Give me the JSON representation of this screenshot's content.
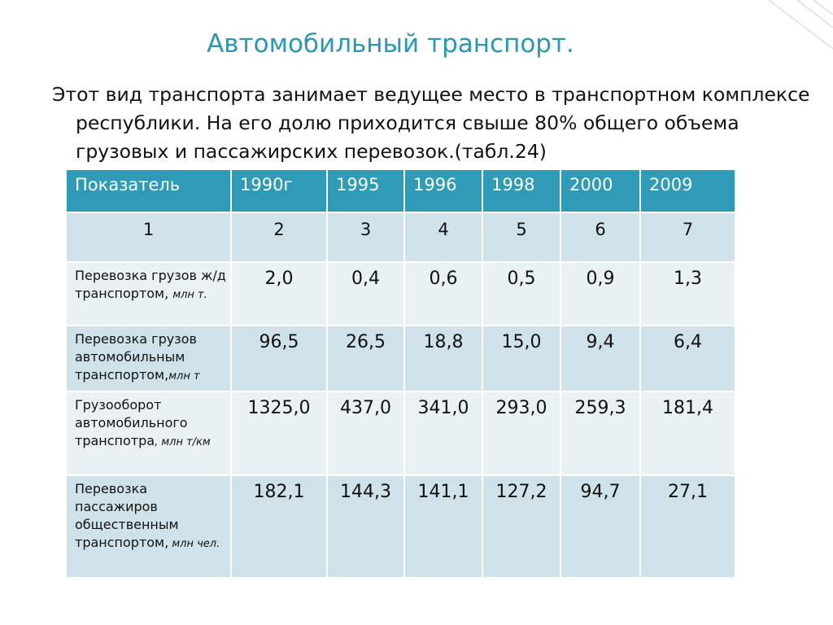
{
  "slide": {
    "title": "Автомобильный транспорт.",
    "body": "Этот вид транспорта занимает ведущее место в транспортном комплексе республики. На его долю приходится свыше 80% общего объема грузовых и пассажирских перевозок.(табл.24)"
  },
  "table": {
    "headers": [
      "Показатель",
      "1990г",
      "1995",
      "1996",
      "1998",
      "2000",
      "2009"
    ],
    "index_row": [
      "1",
      "2",
      "3",
      "4",
      "5",
      "6",
      "7"
    ],
    "rows": [
      {
        "label": "Перевозка грузов ж/д транспортом,",
        "unit": "млн т.",
        "values": [
          "2,0",
          "0,4",
          "0,6",
          "0,5",
          "0,9",
          "1,3"
        ]
      },
      {
        "label": "Перевозка грузов автомобильным транспортом,",
        "unit": "млн т",
        "values": [
          "96,5",
          "26,5",
          "18,8",
          "15,0",
          "9,4",
          "6,4"
        ]
      },
      {
        "label": "Грузооборот автомобильного транспотра",
        "unit": ", млн т/км",
        "values": [
          "1325,0",
          "437,0",
          "341,0",
          "293,0",
          "259,3",
          "181,4"
        ]
      },
      {
        "label": "Перевозка пассажиров общественным транспортом,",
        "unit": " млн чел.",
        "values": [
          "182,1",
          "144,3",
          "141,1",
          "127,2",
          "94,7",
          "27,1"
        ]
      }
    ]
  }
}
